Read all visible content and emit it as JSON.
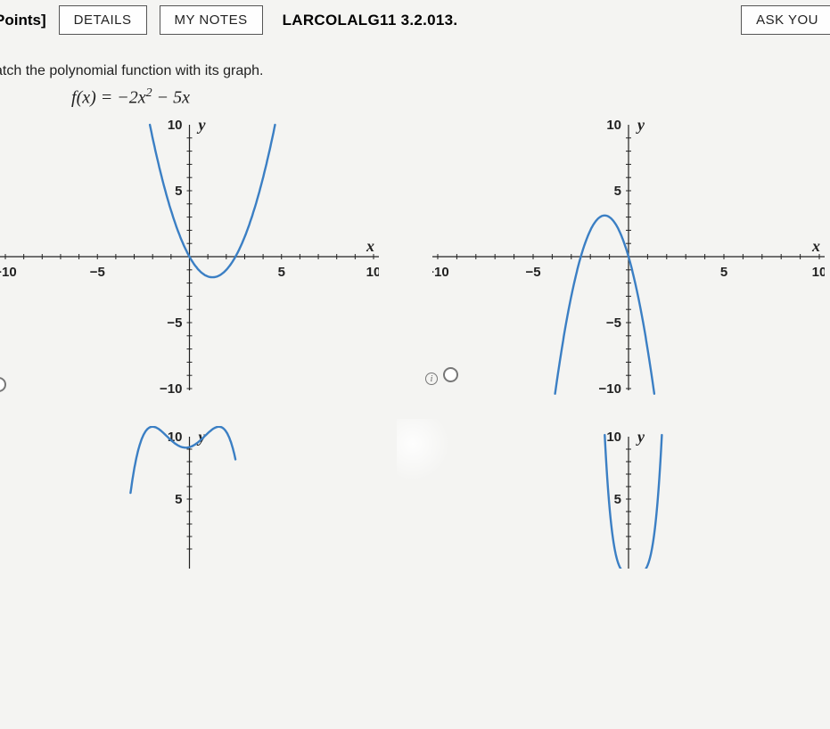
{
  "header": {
    "points_label": "Points]",
    "details_btn": "DETAILS",
    "notes_btn": "MY NOTES",
    "assignment_id": "LARCOLALG11 3.2.013.",
    "ask_btn": "ASK YOU"
  },
  "prompt": "atch the polynomial function with its graph.",
  "formula_html": "f(x) = −2x² − 5x",
  "chart_common": {
    "xlim": [
      -10,
      10
    ],
    "ylim": [
      -10,
      10
    ],
    "xticks": [
      -10,
      -5,
      5,
      10
    ],
    "yticks": [
      -10,
      -5,
      5,
      10
    ],
    "x_axis_label": "x",
    "y_axis_label": "y",
    "curve_color": "#3b7fc4",
    "axis_color": "#222222",
    "bg_color": "#f4f4f2",
    "tick_fontsize": 15,
    "axis_label_fontsize": 18,
    "curve_width": 2.4
  },
  "charts": [
    {
      "id": "A",
      "type": "quadratic-up",
      "desc": "upward parabola, vertex near (1.25,-1.5)",
      "coeffs": {
        "a": 1.0,
        "b": -2.5,
        "c": 0
      },
      "x_draw_range": [
        -2.2,
        4.7
      ]
    },
    {
      "id": "B",
      "type": "quadratic-down",
      "desc": "downward parabola, vertex near (-1.25, 3.1)",
      "coeffs": {
        "a": -2.0,
        "b": -5.0,
        "c": 0
      },
      "x_draw_range": [
        -3.9,
        1.4
      ]
    },
    {
      "id": "C",
      "type": "quartic-neg-partial",
      "desc": "two lobes above axis, partial view",
      "coeffs": {},
      "x_draw_range": [
        -3.2,
        2.5
      ]
    },
    {
      "id": "D",
      "type": "quartic-pos-partial",
      "desc": "upward quartic narrow, partial view",
      "coeffs": {},
      "x_draw_range": [
        -2,
        2.5
      ]
    }
  ]
}
